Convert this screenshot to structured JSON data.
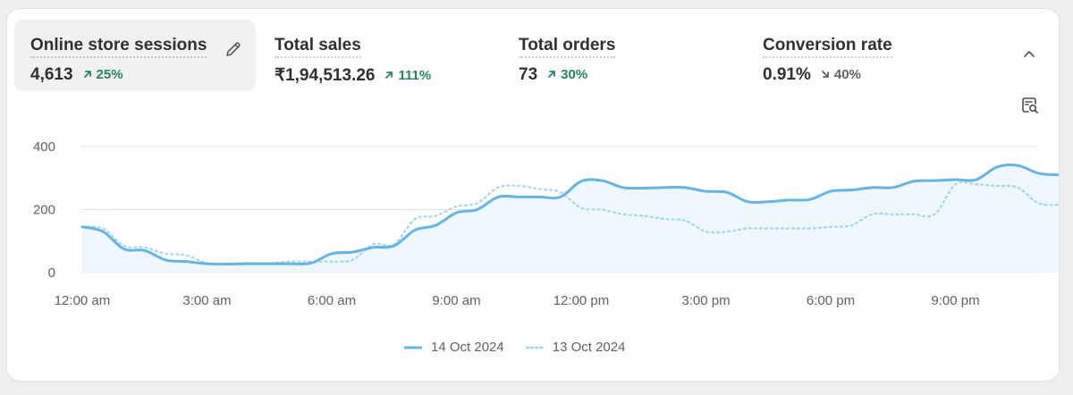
{
  "metrics": [
    {
      "label": "Online store sessions",
      "value": "4,613",
      "change": "25%",
      "trend": "up",
      "selected": true
    },
    {
      "label": "Total sales",
      "value": "₹1,94,513.26",
      "change": "111%",
      "trend": "up",
      "selected": false
    },
    {
      "label": "Total orders",
      "value": "73",
      "change": "30%",
      "trend": "up",
      "selected": false
    },
    {
      "label": "Conversion rate",
      "value": "0.91%",
      "change": "40%",
      "trend": "down",
      "selected": false
    }
  ],
  "icons": {
    "edit": "pencil-icon",
    "collapse": "chevron-up-icon",
    "insight": "search-report-icon",
    "trend_up": "arrow-up-right-icon",
    "trend_down": "arrow-down-right-icon"
  },
  "colors": {
    "up": "#29845a",
    "down": "#616161",
    "series_primary": "#65b4e3",
    "series_compare": "#a6d5ef",
    "fill": "#eef7fc",
    "grid": "#e3e3e3"
  },
  "chart_data": {
    "type": "line",
    "ylim": [
      0,
      400
    ],
    "yticks": [
      "400",
      "200",
      "0"
    ],
    "ytick_values": [
      400,
      200,
      0
    ],
    "xtick_labels": [
      "12:00 am",
      "3:00 am",
      "6:00 am",
      "9:00 am",
      "12:00 pm",
      "3:00 pm",
      "6:00 pm",
      "9:00 pm"
    ],
    "xtick_hours": [
      0,
      3,
      6,
      9,
      12,
      15,
      18,
      21
    ],
    "x_hours": [
      0,
      0.5,
      1,
      1.5,
      2,
      2.5,
      3,
      3.5,
      4,
      4.5,
      5,
      5.5,
      6,
      6.5,
      7,
      7.5,
      8,
      8.5,
      9,
      9.5,
      10,
      10.5,
      11,
      11.5,
      12,
      12.5,
      13,
      13.5,
      14,
      14.5,
      15,
      15.5,
      16,
      16.5,
      17,
      17.5,
      18,
      18.5,
      19,
      19.5,
      20,
      20.5,
      21,
      21.5,
      22,
      22.5,
      23,
      23.5
    ],
    "series": [
      {
        "name": "14 Oct 2024",
        "style": "solid",
        "values": [
          145,
          130,
          75,
          70,
          40,
          35,
          28,
          27,
          28,
          28,
          28,
          30,
          60,
          65,
          80,
          85,
          135,
          150,
          190,
          200,
          240,
          240,
          240,
          240,
          290,
          292,
          270,
          268,
          270,
          270,
          258,
          255,
          225,
          225,
          230,
          232,
          258,
          262,
          270,
          270,
          290,
          292,
          295,
          295,
          335,
          340,
          315,
          310
        ]
      },
      {
        "name": "13 Oct 2024",
        "style": "dotted",
        "values": [
          145,
          140,
          85,
          80,
          60,
          55,
          30,
          28,
          30,
          30,
          35,
          35,
          35,
          40,
          90,
          90,
          170,
          180,
          210,
          220,
          270,
          275,
          265,
          255,
          205,
          200,
          185,
          180,
          170,
          165,
          130,
          130,
          140,
          140,
          140,
          140,
          145,
          150,
          185,
          185,
          185,
          185,
          280,
          280,
          275,
          270,
          220,
          215
        ]
      }
    ]
  },
  "legend": [
    {
      "label": "14 Oct 2024"
    },
    {
      "label": "13 Oct 2024"
    }
  ]
}
